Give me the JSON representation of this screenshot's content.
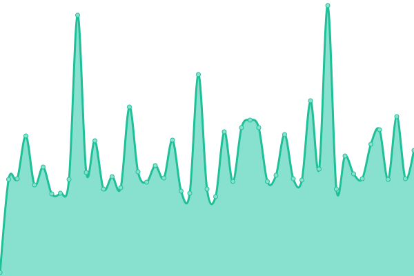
{
  "chart_data": {
    "type": "area",
    "categories": [
      null,
      null,
      null,
      null,
      null,
      null,
      null,
      null,
      null,
      null,
      null,
      null,
      null,
      null,
      null,
      null,
      null,
      null,
      null,
      null,
      null,
      null,
      null,
      null,
      null,
      null,
      null,
      null,
      null,
      null,
      null,
      null,
      null,
      null,
      null,
      null,
      null,
      null,
      null,
      null,
      null,
      null,
      null,
      null,
      null,
      null,
      null,
      null,
      null
    ],
    "values": [
      5,
      140,
      141,
      203,
      132,
      158,
      119,
      120,
      140,
      378,
      150,
      196,
      126,
      144,
      128,
      245,
      151,
      136,
      160,
      142,
      197,
      123,
      120,
      292,
      126,
      115,
      209,
      137,
      215,
      226,
      215,
      137,
      146,
      205,
      141,
      139,
      254,
      155,
      392,
      126,
      174,
      148,
      141,
      191,
      212,
      140,
      231,
      141,
      182
    ],
    "color": "#1fbf98",
    "fill": "#88e0cf",
    "ylim": [
      0,
      400
    ]
  }
}
